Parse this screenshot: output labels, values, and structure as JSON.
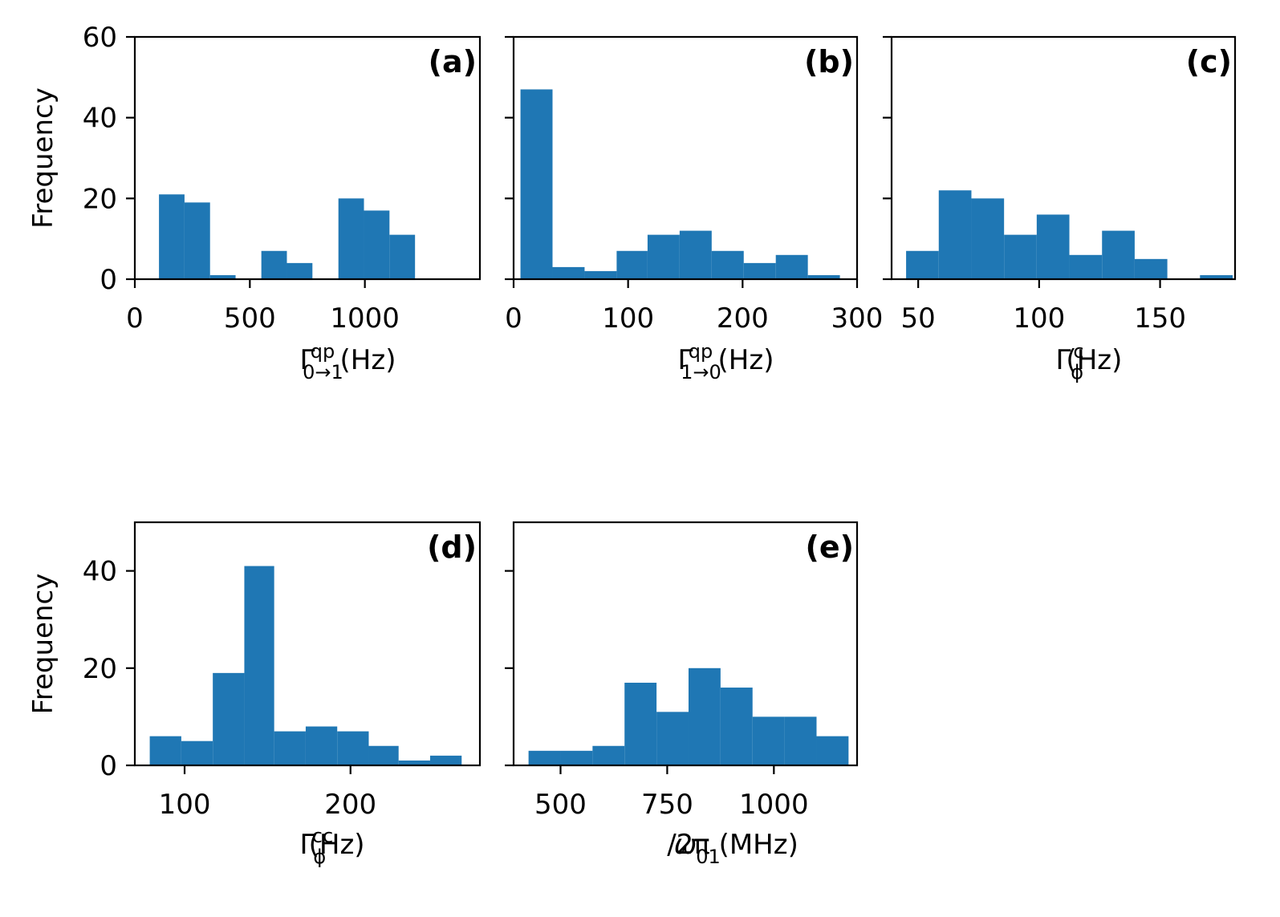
{
  "bar_color": "#1f77b4",
  "chart_data": [
    {
      "type": "bar",
      "panel_label": "(a)",
      "xlabel": {
        "symbol": "Γ",
        "sup": "qp",
        "sub": "0→1",
        "unit": " (Hz)"
      },
      "ylabel": "Frequency",
      "xlim": [
        0,
        1500
      ],
      "ylim": [
        0,
        60
      ],
      "xticks": [
        0,
        500,
        1000
      ],
      "yticks": [
        0,
        20,
        40,
        60
      ],
      "show_ytick_labels": true,
      "bins": [
        {
          "start": 105,
          "end": 216,
          "value": 21
        },
        {
          "start": 216,
          "end": 327,
          "value": 19
        },
        {
          "start": 327,
          "end": 438,
          "value": 1
        },
        {
          "start": 550,
          "end": 661,
          "value": 7
        },
        {
          "start": 661,
          "end": 772,
          "value": 4
        },
        {
          "start": 885,
          "end": 996,
          "value": 20
        },
        {
          "start": 996,
          "end": 1107,
          "value": 17
        },
        {
          "start": 1107,
          "end": 1218,
          "value": 11
        }
      ]
    },
    {
      "type": "bar",
      "panel_label": "(b)",
      "xlabel": {
        "symbol": "Γ",
        "sup": "qp",
        "sub": "1→0",
        "unit": " (Hz)"
      },
      "ylabel": "",
      "xlim": [
        0,
        300
      ],
      "ylim": [
        0,
        60
      ],
      "xticks": [
        0,
        100,
        200,
        300
      ],
      "yticks": [
        0,
        20,
        40,
        60
      ],
      "show_ytick_labels": false,
      "bins": [
        {
          "start": 6,
          "end": 34,
          "value": 47
        },
        {
          "start": 34,
          "end": 62,
          "value": 3
        },
        {
          "start": 62,
          "end": 90,
          "value": 2
        },
        {
          "start": 90,
          "end": 117,
          "value": 7
        },
        {
          "start": 117,
          "end": 145,
          "value": 11
        },
        {
          "start": 145,
          "end": 173,
          "value": 12
        },
        {
          "start": 173,
          "end": 201,
          "value": 7
        },
        {
          "start": 201,
          "end": 229,
          "value": 4
        },
        {
          "start": 229,
          "end": 257,
          "value": 6
        },
        {
          "start": 257,
          "end": 285,
          "value": 1
        }
      ]
    },
    {
      "type": "bar",
      "panel_label": "(c)",
      "xlabel": {
        "symbol": "Γ",
        "sup": "c",
        "sub": "ϕ",
        "unit": " (Hz)"
      },
      "ylabel": "",
      "xlim": [
        39,
        181
      ],
      "ylim": [
        0,
        60
      ],
      "xticks": [
        50,
        100,
        150
      ],
      "yticks": [
        0,
        20,
        40,
        60
      ],
      "show_ytick_labels": false,
      "bins": [
        {
          "start": 45,
          "end": 58.5,
          "value": 7
        },
        {
          "start": 58.5,
          "end": 72,
          "value": 22
        },
        {
          "start": 72,
          "end": 85.5,
          "value": 20
        },
        {
          "start": 85.5,
          "end": 99,
          "value": 11
        },
        {
          "start": 99,
          "end": 112.5,
          "value": 16
        },
        {
          "start": 112.5,
          "end": 126,
          "value": 6
        },
        {
          "start": 126,
          "end": 139.5,
          "value": 12
        },
        {
          "start": 139.5,
          "end": 153,
          "value": 5
        },
        {
          "start": 153,
          "end": 166.5,
          "value": 0
        },
        {
          "start": 166.5,
          "end": 180,
          "value": 1
        }
      ]
    },
    {
      "type": "bar",
      "panel_label": "(d)",
      "xlabel": {
        "symbol": "Γ",
        "sup": "cc",
        "sub": "ϕ",
        "unit": " (Hz)"
      },
      "ylabel": "Frequency",
      "xlim": [
        70,
        278
      ],
      "ylim": [
        0,
        50
      ],
      "xticks": [
        100,
        200
      ],
      "yticks": [
        0,
        20,
        40
      ],
      "show_ytick_labels": true,
      "bins": [
        {
          "start": 79,
          "end": 98,
          "value": 6
        },
        {
          "start": 98,
          "end": 117,
          "value": 5
        },
        {
          "start": 117,
          "end": 136,
          "value": 19
        },
        {
          "start": 136,
          "end": 154,
          "value": 41
        },
        {
          "start": 154,
          "end": 173,
          "value": 7
        },
        {
          "start": 173,
          "end": 192,
          "value": 8
        },
        {
          "start": 192,
          "end": 211,
          "value": 7
        },
        {
          "start": 211,
          "end": 229,
          "value": 4
        },
        {
          "start": 229,
          "end": 248,
          "value": 1
        },
        {
          "start": 248,
          "end": 267,
          "value": 2
        }
      ]
    },
    {
      "type": "bar",
      "panel_label": "(e)",
      "xlabel": {
        "symbol": "ω",
        "sup": "",
        "sub": "01",
        "unit": "/2π (MHz)",
        "italic": true
      },
      "ylabel": "",
      "xlim": [
        390,
        1195
      ],
      "ylim": [
        0,
        50
      ],
      "xticks": [
        500,
        750,
        1000
      ],
      "yticks": [
        0,
        20,
        40
      ],
      "show_ytick_labels": false,
      "bins": [
        {
          "start": 425,
          "end": 500,
          "value": 3
        },
        {
          "start": 500,
          "end": 575,
          "value": 3
        },
        {
          "start": 575,
          "end": 650,
          "value": 4
        },
        {
          "start": 650,
          "end": 725,
          "value": 17
        },
        {
          "start": 725,
          "end": 800,
          "value": 11
        },
        {
          "start": 800,
          "end": 875,
          "value": 20
        },
        {
          "start": 875,
          "end": 950,
          "value": 16
        },
        {
          "start": 950,
          "end": 1025,
          "value": 10
        },
        {
          "start": 1025,
          "end": 1100,
          "value": 10
        },
        {
          "start": 1100,
          "end": 1175,
          "value": 6
        }
      ]
    }
  ]
}
